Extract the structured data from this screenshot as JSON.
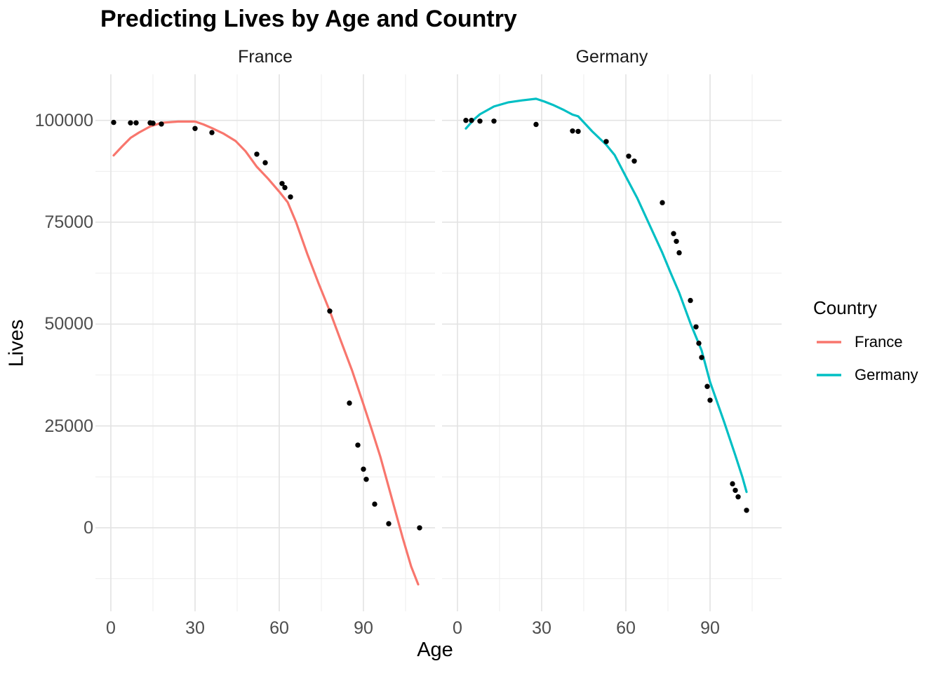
{
  "page": {
    "background": "#FFFFFF"
  },
  "chart_data": {
    "type": "scatter+line",
    "title": "Predicting Lives by Age and Country",
    "xlabel": "Age",
    "ylabel": "Lives",
    "facets": [
      "France",
      "Germany"
    ],
    "legend": {
      "title": "Country",
      "position": "right",
      "items": [
        {
          "label": "France",
          "color": "#F8766D"
        },
        {
          "label": "Germany",
          "color": "#00BFC4"
        }
      ]
    },
    "axes": {
      "x_ticks": [
        0,
        30,
        60,
        90
      ],
      "x_tick_labels": [
        "0",
        "30",
        "60",
        "90"
      ],
      "x_minor": [
        15,
        45,
        75,
        105
      ],
      "y_ticks": [
        0,
        25000,
        50000,
        75000,
        100000
      ],
      "y_tick_labels": [
        "0",
        "25000",
        "50000",
        "75000",
        "100000"
      ],
      "y_minor": [
        -12500,
        12500,
        37500,
        62500,
        87500
      ],
      "x_range": [
        -5.5,
        115.5
      ],
      "y_range": [
        -20500,
        111300
      ],
      "grid": true
    },
    "point_color": "#000000",
    "panels": [
      {
        "label": "France",
        "color": "#F8766D",
        "points": [
          [
            1,
            99500
          ],
          [
            7,
            99400
          ],
          [
            9,
            99400
          ],
          [
            14,
            99400
          ],
          [
            15,
            99300
          ],
          [
            18,
            99100
          ],
          [
            30,
            98000
          ],
          [
            36,
            97000
          ],
          [
            52,
            91700
          ],
          [
            55,
            89600
          ],
          [
            61,
            84500
          ],
          [
            62,
            83500
          ],
          [
            64,
            81200
          ],
          [
            78,
            53200
          ],
          [
            85,
            30600
          ],
          [
            88,
            20300
          ],
          [
            90,
            14400
          ],
          [
            91,
            11900
          ],
          [
            94,
            5800
          ],
          [
            99,
            1000
          ],
          [
            110,
            0
          ]
        ],
        "line": [
          [
            1,
            91400
          ],
          [
            4,
            93600
          ],
          [
            7,
            95700
          ],
          [
            10,
            97000
          ],
          [
            14,
            98500
          ],
          [
            18,
            99400
          ],
          [
            24,
            99700
          ],
          [
            30,
            99700
          ],
          [
            33,
            99000
          ],
          [
            36,
            98100
          ],
          [
            40,
            96800
          ],
          [
            44.5,
            94900
          ],
          [
            48,
            92400
          ],
          [
            52,
            88600
          ],
          [
            56,
            85700
          ],
          [
            60,
            82500
          ],
          [
            63,
            79900
          ],
          [
            66,
            75000
          ],
          [
            70,
            67200
          ],
          [
            74,
            60000
          ],
          [
            78,
            53200
          ],
          [
            82,
            45800
          ],
          [
            86,
            38500
          ],
          [
            90,
            30300
          ],
          [
            93,
            24000
          ],
          [
            96,
            17500
          ],
          [
            100,
            7500
          ],
          [
            104,
            -2500
          ],
          [
            107,
            -9500
          ],
          [
            109.5,
            -13900
          ]
        ]
      },
      {
        "label": "Germany",
        "color": "#00BFC4",
        "points": [
          [
            3,
            100000
          ],
          [
            5,
            100000
          ],
          [
            8,
            99800
          ],
          [
            13,
            99800
          ],
          [
            28,
            99000
          ],
          [
            41,
            97400
          ],
          [
            43,
            97300
          ],
          [
            53,
            94800
          ],
          [
            61,
            91200
          ],
          [
            63,
            90000
          ],
          [
            73,
            79800
          ],
          [
            77,
            72200
          ],
          [
            78,
            70300
          ],
          [
            79,
            67500
          ],
          [
            83,
            55800
          ],
          [
            85,
            49300
          ],
          [
            86,
            45300
          ],
          [
            87,
            41800
          ],
          [
            89,
            34700
          ],
          [
            90,
            31300
          ],
          [
            98,
            10800
          ],
          [
            99,
            9200
          ],
          [
            100,
            7600
          ],
          [
            103,
            4300
          ]
        ],
        "line": [
          [
            3,
            98000
          ],
          [
            6,
            100300
          ],
          [
            8,
            101500
          ],
          [
            13,
            103400
          ],
          [
            18,
            104400
          ],
          [
            23,
            104900
          ],
          [
            28,
            105300
          ],
          [
            31,
            104600
          ],
          [
            34,
            103800
          ],
          [
            38,
            102500
          ],
          [
            41,
            101400
          ],
          [
            43,
            101000
          ],
          [
            48,
            97300
          ],
          [
            53,
            94000
          ],
          [
            56,
            91500
          ],
          [
            60,
            86200
          ],
          [
            64,
            81000
          ],
          [
            68,
            75000
          ],
          [
            73,
            67500
          ],
          [
            76,
            62500
          ],
          [
            79,
            57700
          ],
          [
            83,
            50200
          ],
          [
            87,
            43500
          ],
          [
            90,
            35800
          ],
          [
            95,
            26000
          ],
          [
            99,
            17800
          ],
          [
            101.5,
            12500
          ],
          [
            103,
            8800
          ]
        ]
      }
    ]
  }
}
